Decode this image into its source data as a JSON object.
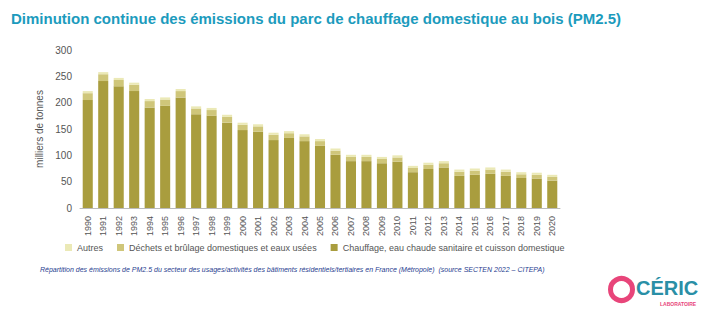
{
  "chart_data": {
    "type": "bar",
    "title": "Diminution continue des émissions du parc de chauffage domestique au bois (PM2.5)",
    "y_label": "milliers de tonnes",
    "annotations": [
      "Répartition des émissions de PM2.5 du secteur des usages/activités des bâtiments résidentiels/tertiaires en France (Métropole)  (source SECTEN 2022 – CITEPA)",
      "CÉRIC",
      "LABORATOIRE"
    ],
    "categories": [
      "1990",
      "1991",
      "1992",
      "1993",
      "1994",
      "1995",
      "1996",
      "1997",
      "1998",
      "1999",
      "2000",
      "2001",
      "2002",
      "2003",
      "2004",
      "2005",
      "2006",
      "2007",
      "2008",
      "2009",
      "2010",
      "2011",
      "2012",
      "2013",
      "2014",
      "2015",
      "2016",
      "2017",
      "2018",
      "2019",
      "2020"
    ],
    "series": [
      {
        "name": "Autres",
        "color": "#ebe9b6",
        "values": [
          4,
          4,
          4,
          4,
          4,
          4,
          4,
          4,
          4,
          4,
          4,
          4,
          4,
          4,
          4,
          4,
          4,
          4,
          4,
          4,
          4,
          4,
          4,
          4,
          4,
          4,
          4,
          4,
          4,
          4,
          4
        ]
      },
      {
        "name": "Déchets et brûlage domestiques et eaux usées",
        "color": "#cfc67a",
        "values": [
          13,
          13,
          12,
          12,
          12,
          12,
          12,
          11,
          11,
          11,
          10,
          10,
          10,
          9,
          9,
          9,
          8,
          8,
          8,
          8,
          8,
          8,
          8,
          8,
          8,
          8,
          8,
          8,
          7,
          7,
          7
        ]
      },
      {
        "name": "Chauffage, eau chaude sanitaire et cuisson domestique",
        "color": "#a99d3e",
        "values": [
          205,
          241,
          231,
          222,
          191,
          194,
          210,
          178,
          175,
          162,
          148,
          145,
          129,
          133,
          127,
          118,
          101,
          89,
          89,
          85,
          88,
          68,
          74,
          77,
          61,
          63,
          65,
          61,
          57,
          56,
          52
        ]
      }
    ],
    "stacked": true,
    "legend": "bottom",
    "grid": false,
    "ylim": [
      0,
      300
    ],
    "yticks": [
      0,
      50,
      100,
      150,
      200,
      250,
      300
    ]
  }
}
